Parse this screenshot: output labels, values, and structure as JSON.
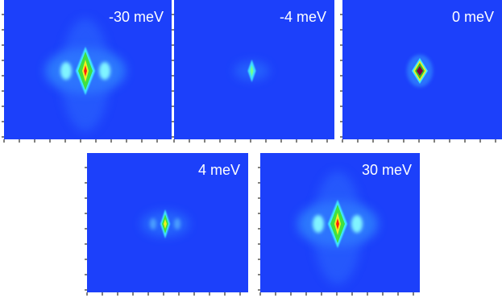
{
  "panels": [
    {
      "label": "-30 meV"
    },
    {
      "label": "-4 meV"
    },
    {
      "label": "0 meV"
    },
    {
      "label": "4 meV"
    },
    {
      "label": "30 meV"
    }
  ]
}
